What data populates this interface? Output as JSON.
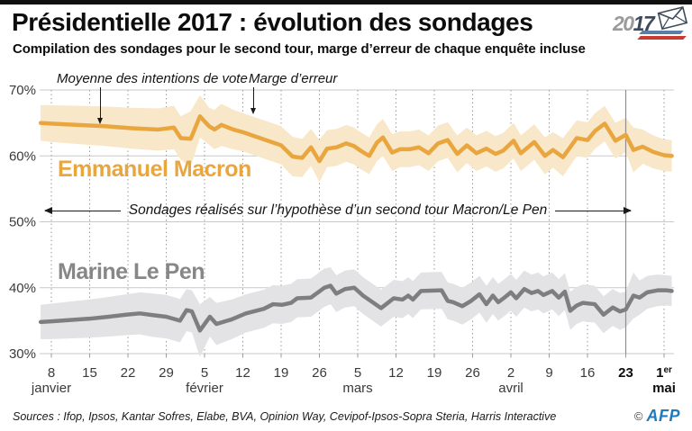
{
  "header": {
    "title": "Présidentielle 2017 : évolution des sondages",
    "logo": {
      "year_left": "20",
      "year_right": "17"
    }
  },
  "subtitle": "Compilation des sondages pour le second tour, marge d’erreur de chaque enquête incluse",
  "annotations": {
    "mean": "Moyenne des intentions de vote",
    "margin": "Marge d’erreur",
    "hypothesis": "Sondages réalisés sur l’hypothèse d’un second tour Macron/Le Pen"
  },
  "footer": {
    "sources": "Sources : Ifop, Ipsos, Kantar Sofres, Elabe, BVA, Opinion Way, Cevipof-Ipsos-Sopra Steria, Harris Interactive",
    "copyright": "©",
    "agency": "AFP"
  },
  "chart_data": {
    "type": "line",
    "title": "Présidentielle 2017 : évolution des sondages",
    "subtitle": "Compilation des sondages pour le second tour, marge d’erreur de chaque enquête incluse",
    "ylim": [
      30,
      70
    ],
    "grid": true,
    "y_ticks": [
      {
        "value": 70,
        "label": "70%"
      },
      {
        "value": 60,
        "label": "60%"
      },
      {
        "value": 50,
        "label": "50%"
      },
      {
        "value": 40,
        "label": "40%"
      },
      {
        "value": 30,
        "label": "30%"
      }
    ],
    "x_ticks": [
      {
        "t": 0,
        "label": "8"
      },
      {
        "t": 1,
        "label": "15"
      },
      {
        "t": 2,
        "label": "22"
      },
      {
        "t": 3,
        "label": "29"
      },
      {
        "t": 4,
        "label": "5"
      },
      {
        "t": 5,
        "label": "12"
      },
      {
        "t": 6,
        "label": "19"
      },
      {
        "t": 7,
        "label": "26"
      },
      {
        "t": 8,
        "label": "5"
      },
      {
        "t": 9,
        "label": "12"
      },
      {
        "t": 10,
        "label": "19"
      },
      {
        "t": 11,
        "label": "26"
      },
      {
        "t": 12,
        "label": "2"
      },
      {
        "t": 13,
        "label": "9"
      },
      {
        "t": 14,
        "label": "16"
      },
      {
        "t": 15,
        "label": "23",
        "bold": true
      },
      {
        "t": 16,
        "label": "1",
        "sup": "er",
        "bold": true
      }
    ],
    "x_months": [
      {
        "t": 0,
        "label": "janvier"
      },
      {
        "t": 4,
        "label": "février"
      },
      {
        "t": 8,
        "label": "mars"
      },
      {
        "t": 12,
        "label": "avril"
      },
      {
        "t": 16,
        "label": "mai",
        "bold": true
      }
    ],
    "event_line": {
      "t": 15,
      "color": "#8f8f8f"
    },
    "series": [
      {
        "name": "Emmanuel Macron",
        "color": "#E9A63E",
        "band_color": "#F8E7C8",
        "points": [
          [
            -0.28,
            65.0,
            2.7
          ],
          [
            0,
            64.9,
            2.8
          ],
          [
            0.7,
            64.7,
            2.9
          ],
          [
            1.4,
            64.5,
            3.0
          ],
          [
            2.1,
            64.2,
            3.1
          ],
          [
            2.8,
            64.0,
            3.2
          ],
          [
            3.2,
            64.3,
            3.3
          ],
          [
            3.38,
            62.7,
            3.3
          ],
          [
            3.64,
            62.6,
            4.2
          ],
          [
            3.88,
            66.0,
            3.2
          ],
          [
            4.12,
            64.5,
            2.8
          ],
          [
            4.26,
            64.0,
            3.0
          ],
          [
            4.44,
            64.7,
            3.2
          ],
          [
            4.75,
            64.0,
            3.0
          ],
          [
            5.0,
            63.6,
            2.9
          ],
          [
            5.35,
            62.9,
            2.9
          ],
          [
            5.7,
            62.2,
            2.9
          ],
          [
            6.0,
            61.6,
            2.9
          ],
          [
            6.3,
            59.9,
            3.0
          ],
          [
            6.55,
            59.7,
            2.9
          ],
          [
            6.78,
            61.3,
            2.8
          ],
          [
            7.0,
            59.2,
            3.2
          ],
          [
            7.2,
            61.1,
            2.8
          ],
          [
            7.45,
            61.3,
            2.8
          ],
          [
            7.7,
            61.9,
            2.8
          ],
          [
            7.9,
            61.5,
            2.8
          ],
          [
            8.1,
            60.7,
            2.8
          ],
          [
            8.3,
            60.0,
            2.8
          ],
          [
            8.5,
            62.0,
            2.8
          ],
          [
            8.66,
            62.8,
            2.8
          ],
          [
            8.9,
            60.5,
            2.8
          ],
          [
            9.1,
            61.0,
            2.7
          ],
          [
            9.35,
            61.0,
            2.7
          ],
          [
            9.6,
            61.3,
            2.7
          ],
          [
            9.85,
            60.4,
            2.7
          ],
          [
            10.1,
            61.9,
            2.7
          ],
          [
            10.35,
            62.4,
            2.7
          ],
          [
            10.6,
            60.3,
            2.8
          ],
          [
            10.85,
            61.6,
            2.7
          ],
          [
            11.1,
            60.4,
            2.7
          ],
          [
            11.36,
            61.1,
            2.7
          ],
          [
            11.6,
            60.3,
            2.7
          ],
          [
            11.8,
            60.8,
            2.7
          ],
          [
            12.07,
            62.3,
            2.7
          ],
          [
            12.26,
            60.4,
            2.7
          ],
          [
            12.61,
            62.1,
            2.7
          ],
          [
            12.89,
            60.0,
            2.8
          ],
          [
            13.1,
            60.9,
            2.7
          ],
          [
            13.36,
            59.8,
            2.9
          ],
          [
            13.72,
            62.7,
            2.7
          ],
          [
            14.0,
            62.4,
            2.7
          ],
          [
            14.2,
            63.8,
            2.7
          ],
          [
            14.45,
            64.9,
            2.7
          ],
          [
            14.73,
            62.3,
            2.7
          ],
          [
            15.0,
            63.2,
            2.6
          ],
          [
            15.2,
            60.9,
            3.4
          ],
          [
            15.44,
            61.4,
            2.6
          ],
          [
            15.72,
            60.6,
            2.5
          ],
          [
            16.0,
            60.1,
            2.4
          ],
          [
            16.2,
            60.0,
            2.4
          ]
        ]
      },
      {
        "name": "Marine Le Pen",
        "color": "#7E7E81",
        "band_color": "#E3E3E5",
        "points": [
          [
            -0.28,
            34.8,
            2.6
          ],
          [
            0,
            34.9,
            2.7
          ],
          [
            0.5,
            35.1,
            2.8
          ],
          [
            1,
            35.3,
            2.9
          ],
          [
            1.5,
            35.6,
            3.0
          ],
          [
            1.95,
            35.9,
            3.1
          ],
          [
            2.31,
            36.1,
            3.2
          ],
          [
            2.7,
            35.8,
            3.3
          ],
          [
            3.0,
            35.6,
            3.3
          ],
          [
            3.36,
            35.0,
            3.3
          ],
          [
            3.53,
            36.6,
            3.2
          ],
          [
            3.67,
            36.4,
            3.2
          ],
          [
            3.88,
            33.5,
            4.0
          ],
          [
            4.14,
            35.6,
            3.0
          ],
          [
            4.31,
            34.5,
            3.2
          ],
          [
            4.71,
            35.2,
            3.0
          ],
          [
            5.08,
            36.1,
            2.9
          ],
          [
            5.55,
            36.8,
            2.9
          ],
          [
            5.79,
            37.5,
            2.9
          ],
          [
            6.02,
            37.4,
            2.9
          ],
          [
            6.26,
            37.7,
            2.9
          ],
          [
            6.42,
            38.4,
            2.9
          ],
          [
            6.78,
            38.5,
            2.9
          ],
          [
            7.13,
            40.0,
            2.9
          ],
          [
            7.29,
            40.3,
            2.8
          ],
          [
            7.44,
            39.1,
            2.8
          ],
          [
            7.67,
            39.8,
            2.8
          ],
          [
            7.91,
            40.0,
            2.8
          ],
          [
            8.14,
            38.8,
            2.8
          ],
          [
            8.61,
            36.9,
            2.8
          ],
          [
            8.94,
            38.4,
            2.8
          ],
          [
            9.17,
            38.2,
            2.8
          ],
          [
            9.32,
            38.8,
            2.8
          ],
          [
            9.44,
            38.2,
            2.8
          ],
          [
            9.65,
            39.5,
            2.8
          ],
          [
            10.19,
            39.6,
            2.8
          ],
          [
            10.35,
            38.0,
            2.8
          ],
          [
            10.49,
            37.8,
            2.8
          ],
          [
            10.73,
            37.2,
            2.8
          ],
          [
            10.96,
            38.0,
            2.8
          ],
          [
            11.18,
            39.0,
            2.8
          ],
          [
            11.36,
            37.5,
            2.8
          ],
          [
            11.53,
            38.8,
            2.8
          ],
          [
            11.67,
            37.8,
            2.8
          ],
          [
            11.83,
            38.5,
            2.8
          ],
          [
            12.0,
            39.3,
            2.8
          ],
          [
            12.14,
            38.4,
            2.8
          ],
          [
            12.35,
            39.8,
            2.8
          ],
          [
            12.54,
            39.2,
            2.8
          ],
          [
            12.71,
            39.5,
            2.8
          ],
          [
            12.85,
            38.9,
            2.8
          ],
          [
            13.08,
            39.5,
            2.8
          ],
          [
            13.25,
            38.5,
            2.8
          ],
          [
            13.41,
            39.4,
            2.8
          ],
          [
            13.55,
            36.5,
            2.9
          ],
          [
            13.72,
            37.3,
            2.8
          ],
          [
            13.88,
            37.7,
            2.8
          ],
          [
            14.19,
            37.5,
            2.8
          ],
          [
            14.42,
            35.9,
            2.8
          ],
          [
            14.66,
            37.0,
            2.8
          ],
          [
            14.85,
            36.4,
            2.8
          ],
          [
            15.0,
            36.7,
            2.7
          ],
          [
            15.2,
            38.8,
            3.5
          ],
          [
            15.36,
            38.5,
            2.6
          ],
          [
            15.56,
            39.3,
            2.5
          ],
          [
            15.83,
            39.6,
            2.4
          ],
          [
            16.07,
            39.6,
            2.3
          ],
          [
            16.2,
            39.5,
            2.3
          ]
        ]
      }
    ]
  }
}
